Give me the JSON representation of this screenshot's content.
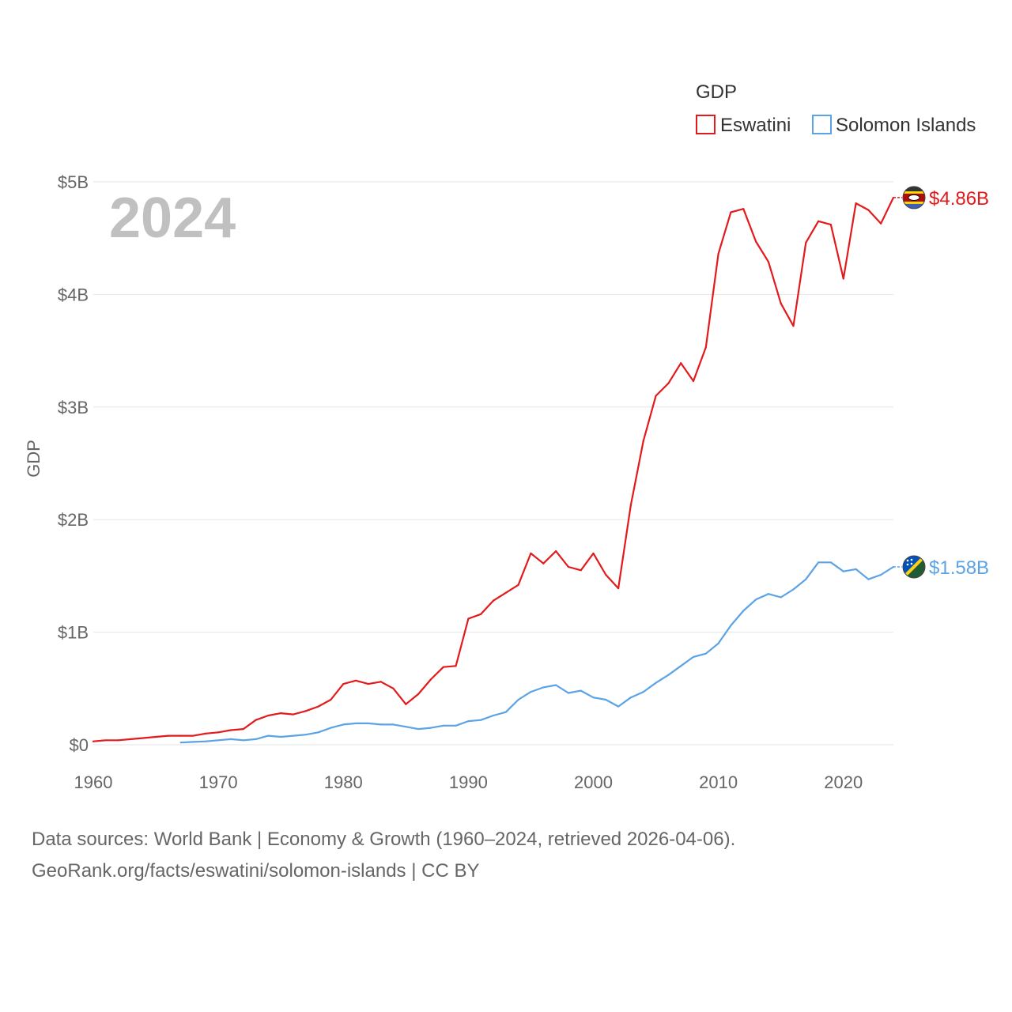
{
  "chart_data": {
    "type": "line",
    "title": "GDP",
    "legend_title": "GDP",
    "ylabel": "GDP",
    "xlabel": "",
    "year_display": "2024",
    "xlim": [
      1960,
      2024
    ],
    "ylim": [
      0,
      5
    ],
    "x_ticks": [
      1960,
      1970,
      1980,
      1990,
      2000,
      2010,
      2020
    ],
    "x_tick_labels": [
      "1960",
      "1970",
      "1980",
      "1990",
      "2000",
      "2010",
      "2020"
    ],
    "y_ticks": [
      0,
      1,
      2,
      3,
      4,
      5
    ],
    "y_tick_labels": [
      "$0",
      "$1B",
      "$2B",
      "$3B",
      "$4B",
      "$5B"
    ],
    "grid": true,
    "legend_position": "top-right",
    "series": [
      {
        "name": "Eswatini",
        "color": "#e31a1c",
        "end_label": "$4.86B",
        "flag_icon": "eswatini-flag-icon",
        "x": [
          1960,
          1961,
          1962,
          1963,
          1964,
          1965,
          1966,
          1967,
          1968,
          1969,
          1970,
          1971,
          1972,
          1973,
          1974,
          1975,
          1976,
          1977,
          1978,
          1979,
          1980,
          1981,
          1982,
          1983,
          1984,
          1985,
          1986,
          1987,
          1988,
          1989,
          1990,
          1991,
          1992,
          1993,
          1994,
          1995,
          1996,
          1997,
          1998,
          1999,
          2000,
          2001,
          2002,
          2003,
          2004,
          2005,
          2006,
          2007,
          2008,
          2009,
          2010,
          2011,
          2012,
          2013,
          2014,
          2015,
          2016,
          2017,
          2018,
          2019,
          2020,
          2021,
          2022,
          2023,
          2024
        ],
        "values": [
          0.03,
          0.04,
          0.04,
          0.05,
          0.06,
          0.07,
          0.08,
          0.08,
          0.08,
          0.1,
          0.11,
          0.13,
          0.14,
          0.22,
          0.26,
          0.28,
          0.27,
          0.3,
          0.34,
          0.4,
          0.54,
          0.57,
          0.54,
          0.56,
          0.5,
          0.36,
          0.45,
          0.58,
          0.69,
          0.7,
          1.12,
          1.16,
          1.28,
          1.35,
          1.42,
          1.7,
          1.61,
          1.72,
          1.58,
          1.55,
          1.7,
          1.51,
          1.39,
          2.13,
          2.7,
          3.1,
          3.21,
          3.39,
          3.23,
          3.53,
          4.36,
          4.73,
          4.76,
          4.47,
          4.29,
          3.92,
          3.72,
          4.46,
          4.65,
          4.62,
          4.14,
          4.81,
          4.75,
          4.63,
          4.86
        ]
      },
      {
        "name": "Solomon Islands",
        "color": "#5ba3e6",
        "end_label": "$1.58B",
        "flag_icon": "solomon-islands-flag-icon",
        "x": [
          1967,
          1968,
          1969,
          1970,
          1971,
          1972,
          1973,
          1974,
          1975,
          1976,
          1977,
          1978,
          1979,
          1980,
          1981,
          1982,
          1983,
          1984,
          1985,
          1986,
          1987,
          1988,
          1989,
          1990,
          1991,
          1992,
          1993,
          1994,
          1995,
          1996,
          1997,
          1998,
          1999,
          2000,
          2001,
          2002,
          2003,
          2004,
          2005,
          2006,
          2007,
          2008,
          2009,
          2010,
          2011,
          2012,
          2013,
          2014,
          2015,
          2016,
          2017,
          2018,
          2019,
          2020,
          2021,
          2022,
          2023,
          2024
        ],
        "values": [
          0.02,
          0.025,
          0.03,
          0.04,
          0.05,
          0.04,
          0.05,
          0.08,
          0.07,
          0.08,
          0.09,
          0.11,
          0.15,
          0.18,
          0.19,
          0.19,
          0.18,
          0.18,
          0.16,
          0.14,
          0.15,
          0.17,
          0.17,
          0.21,
          0.22,
          0.26,
          0.29,
          0.4,
          0.47,
          0.51,
          0.53,
          0.46,
          0.48,
          0.42,
          0.4,
          0.34,
          0.42,
          0.47,
          0.55,
          0.62,
          0.7,
          0.78,
          0.81,
          0.9,
          1.06,
          1.19,
          1.29,
          1.34,
          1.31,
          1.38,
          1.47,
          1.62,
          1.62,
          1.54,
          1.56,
          1.47,
          1.51,
          1.58
        ]
      }
    ]
  },
  "footer": {
    "source_line": "Data sources: World Bank | Economy & Growth (1960–2024, retrieved 2026-04-06).",
    "credit_line": "GeoRank.org/facts/eswatini/solomon-islands | CC BY"
  }
}
